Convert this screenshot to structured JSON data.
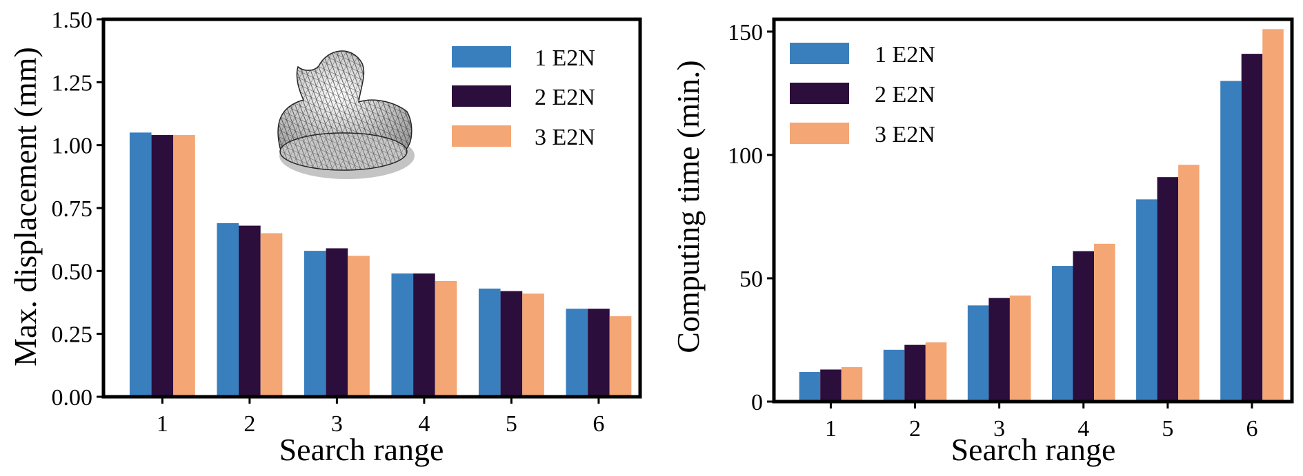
{
  "chart_data": [
    {
      "type": "bar",
      "title": "",
      "xlabel": "Search range",
      "ylabel": "Max. displacement (mm)",
      "categories": [
        "1",
        "2",
        "3",
        "4",
        "5",
        "6"
      ],
      "ylim": [
        0,
        1.5
      ],
      "yticks": [
        0,
        0.25,
        0.5,
        0.75,
        1.0,
        1.25,
        1.5
      ],
      "ytick_labels": [
        "0.00",
        "0.25",
        "0.50",
        "0.75",
        "1.00",
        "1.25",
        "1.50"
      ],
      "legend_position": "top-right",
      "inset": "wireframe duck mesh",
      "series": [
        {
          "name": "1 E2N",
          "color": "#3a7fbd",
          "values": [
            1.05,
            0.69,
            0.58,
            0.49,
            0.43,
            0.35
          ]
        },
        {
          "name": "2 E2N",
          "color": "#2c0e3d",
          "values": [
            1.04,
            0.68,
            0.59,
            0.49,
            0.42,
            0.35
          ]
        },
        {
          "name": "3 E2N",
          "color": "#f4a674",
          "values": [
            1.04,
            0.65,
            0.56,
            0.46,
            0.41,
            0.32
          ]
        }
      ]
    },
    {
      "type": "bar",
      "title": "",
      "xlabel": "Search range",
      "ylabel": "Computing time (min.)",
      "categories": [
        "1",
        "2",
        "3",
        "4",
        "5",
        "6"
      ],
      "ylim": [
        0,
        155
      ],
      "yticks": [
        0,
        50,
        100,
        150
      ],
      "ytick_labels": [
        "0",
        "50",
        "100",
        "150"
      ],
      "legend_position": "top-left",
      "series": [
        {
          "name": "1 E2N",
          "color": "#3a7fbd",
          "values": [
            12,
            21,
            39,
            55,
            82,
            130
          ]
        },
        {
          "name": "2 E2N",
          "color": "#2c0e3d",
          "values": [
            13,
            23,
            42,
            61,
            91,
            141
          ]
        },
        {
          "name": "3 E2N",
          "color": "#f4a674",
          "values": [
            14,
            24,
            43,
            64,
            96,
            151
          ]
        }
      ]
    }
  ]
}
